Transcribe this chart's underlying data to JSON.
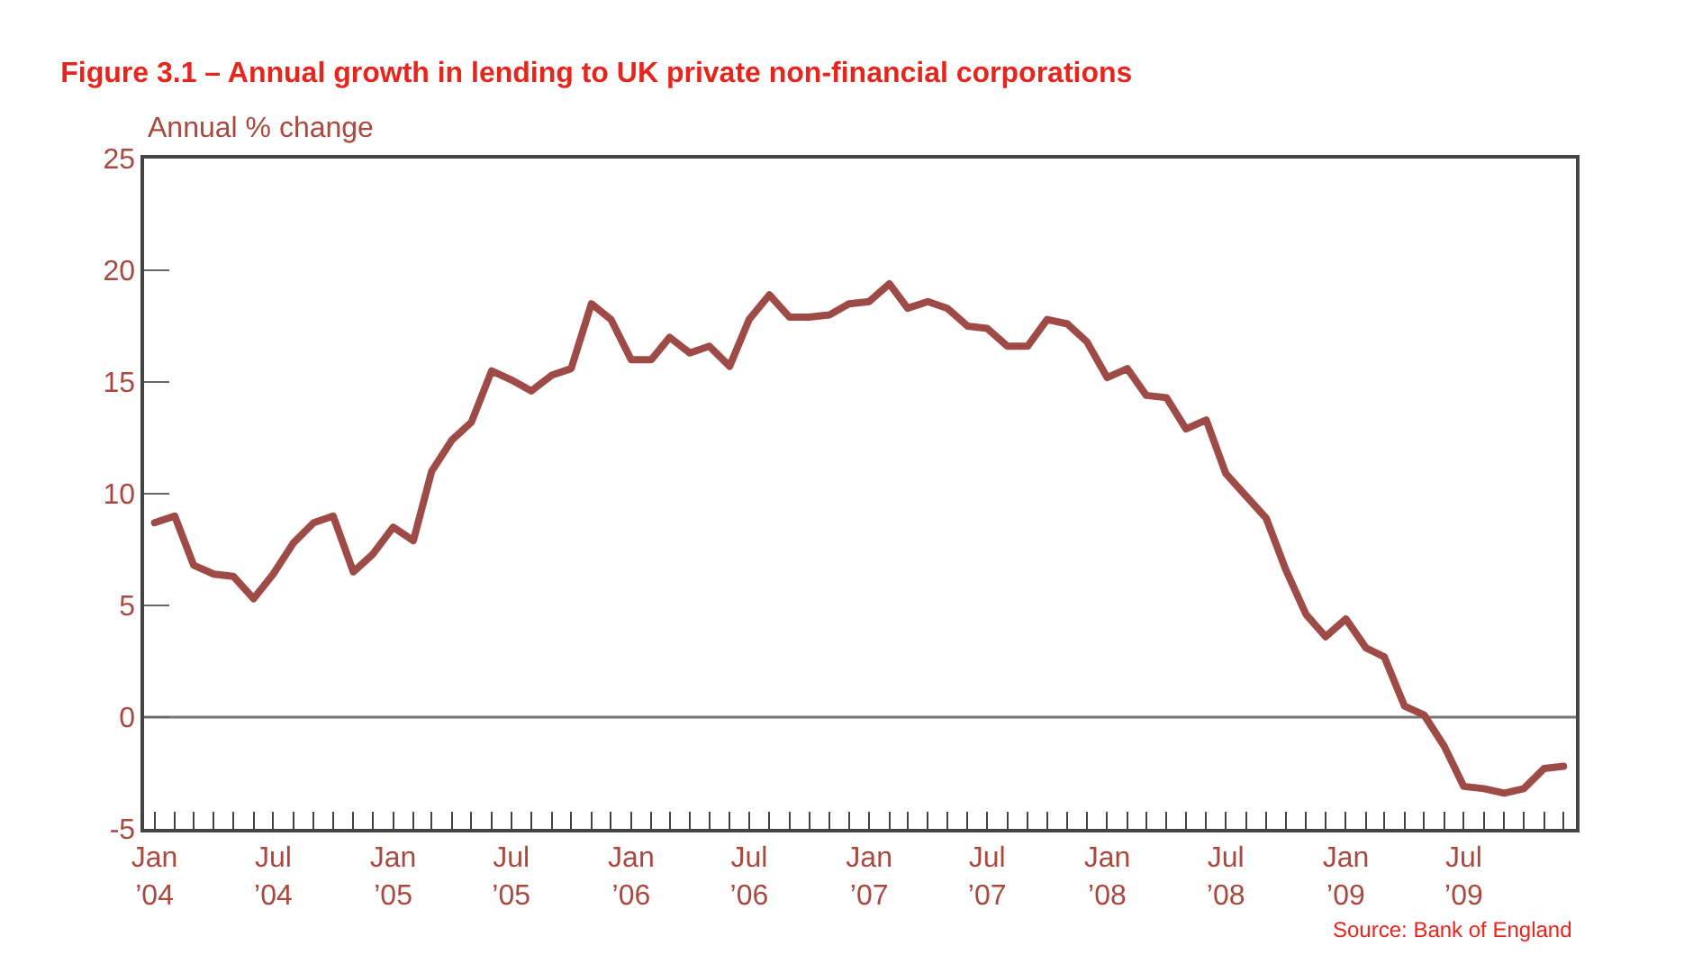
{
  "chart_data": {
    "type": "line",
    "title": "Figure 3.1 – Annual growth in lending to UK private non-financial corporations",
    "ylabel": "Annual % change",
    "x": [
      "2004-01",
      "2004-02",
      "2004-03",
      "2004-04",
      "2004-05",
      "2004-06",
      "2004-07",
      "2004-08",
      "2004-09",
      "2004-10",
      "2004-11",
      "2004-12",
      "2005-01",
      "2005-02",
      "2005-03",
      "2005-04",
      "2005-05",
      "2005-06",
      "2005-07",
      "2005-08",
      "2005-09",
      "2005-10",
      "2005-11",
      "2005-12",
      "2006-01",
      "2006-02",
      "2006-03",
      "2006-04",
      "2006-05",
      "2006-06",
      "2006-07",
      "2006-08",
      "2006-09",
      "2006-10",
      "2006-11",
      "2006-12",
      "2007-01",
      "2007-02",
      "2007-03",
      "2007-04",
      "2007-05",
      "2007-06",
      "2007-07",
      "2007-08",
      "2007-09",
      "2007-10",
      "2007-11",
      "2007-12",
      "2008-01",
      "2008-02",
      "2008-03",
      "2008-04",
      "2008-05",
      "2008-06",
      "2008-07",
      "2008-08",
      "2008-09",
      "2008-10",
      "2008-11",
      "2008-12",
      "2009-01",
      "2009-02",
      "2009-03",
      "2009-04",
      "2009-05",
      "2009-06",
      "2009-07",
      "2009-08",
      "2009-09",
      "2009-10",
      "2009-11",
      "2009-12"
    ],
    "series": [
      {
        "color": "#9e4a47",
        "values": [
          8.7,
          9.0,
          6.8,
          6.4,
          6.3,
          5.3,
          6.4,
          7.8,
          8.7,
          9.0,
          6.5,
          7.3,
          8.5,
          7.9,
          11.0,
          12.4,
          13.2,
          15.5,
          15.1,
          14.6,
          15.3,
          15.6,
          18.5,
          17.8,
          16.0,
          16.0,
          17.0,
          16.3,
          16.6,
          15.7,
          17.8,
          18.9,
          17.9,
          17.9,
          18.0,
          18.5,
          18.6,
          19.4,
          18.3,
          18.6,
          18.3,
          17.5,
          17.4,
          16.6,
          16.6,
          17.8,
          17.6,
          16.8,
          15.2,
          15.6,
          14.4,
          14.3,
          12.9,
          13.3,
          10.9,
          9.9,
          8.9,
          6.6,
          4.6,
          3.6,
          4.4,
          3.1,
          2.7,
          0.5,
          0.1,
          -1.3,
          -3.1,
          -3.2,
          -3.4,
          -3.2,
          -2.3,
          -2.2
        ]
      }
    ],
    "ylim": [
      -5,
      25
    ],
    "yticks": [
      -5,
      0,
      5,
      10,
      15,
      20,
      25
    ],
    "xlim": [
      "2003-12-16",
      "2009-12-20"
    ],
    "xticks": [
      {
        "value": "2004-01",
        "label": "Jan\n’04"
      },
      {
        "value": "2004-02",
        "label": null
      },
      {
        "value": "2004-03",
        "label": null
      },
      {
        "value": "2004-04",
        "label": null
      },
      {
        "value": "2004-05",
        "label": null
      },
      {
        "value": "2004-06",
        "label": null
      },
      {
        "value": "2004-07",
        "label": "Jul\n’04"
      },
      {
        "value": "2004-08",
        "label": null
      },
      {
        "value": "2004-09",
        "label": null
      },
      {
        "value": "2004-10",
        "label": null
      },
      {
        "value": "2004-11",
        "label": null
      },
      {
        "value": "2004-12",
        "label": null
      },
      {
        "value": "2005-01",
        "label": "Jan\n’05"
      },
      {
        "value": "2005-02",
        "label": null
      },
      {
        "value": "2005-03",
        "label": null
      },
      {
        "value": "2005-04",
        "label": null
      },
      {
        "value": "2005-05",
        "label": null
      },
      {
        "value": "2005-06",
        "label": null
      },
      {
        "value": "2005-07",
        "label": "Jul\n’05"
      },
      {
        "value": "2005-08",
        "label": null
      },
      {
        "value": "2005-09",
        "label": null
      },
      {
        "value": "2005-10",
        "label": null
      },
      {
        "value": "2005-11",
        "label": null
      },
      {
        "value": "2005-12",
        "label": null
      },
      {
        "value": "2006-01",
        "label": "Jan\n’06"
      },
      {
        "value": "2006-02",
        "label": null
      },
      {
        "value": "2006-03",
        "label": null
      },
      {
        "value": "2006-04",
        "label": null
      },
      {
        "value": "2006-05",
        "label": null
      },
      {
        "value": "2006-06",
        "label": null
      },
      {
        "value": "2006-07",
        "label": "Jul\n’06"
      },
      {
        "value": "2006-08",
        "label": null
      },
      {
        "value": "2006-09",
        "label": null
      },
      {
        "value": "2006-10",
        "label": null
      },
      {
        "value": "2006-11",
        "label": null
      },
      {
        "value": "2006-12",
        "label": null
      },
      {
        "value": "2007-01",
        "label": "Jan\n’07"
      },
      {
        "value": "2007-02",
        "label": null
      },
      {
        "value": "2007-03",
        "label": null
      },
      {
        "value": "2007-04",
        "label": null
      },
      {
        "value": "2007-05",
        "label": null
      },
      {
        "value": "2007-06",
        "label": null
      },
      {
        "value": "2007-07",
        "label": "Jul\n’07"
      },
      {
        "value": "2007-08",
        "label": null
      },
      {
        "value": "2007-09",
        "label": null
      },
      {
        "value": "2007-10",
        "label": null
      },
      {
        "value": "2007-11",
        "label": null
      },
      {
        "value": "2007-12",
        "label": null
      },
      {
        "value": "2008-01",
        "label": "Jan\n’08"
      },
      {
        "value": "2008-02",
        "label": null
      },
      {
        "value": "2008-03",
        "label": null
      },
      {
        "value": "2008-04",
        "label": null
      },
      {
        "value": "2008-05",
        "label": null
      },
      {
        "value": "2008-06",
        "label": null
      },
      {
        "value": "2008-07",
        "label": "Jul\n’08"
      },
      {
        "value": "2008-08",
        "label": null
      },
      {
        "value": "2008-09",
        "label": null
      },
      {
        "value": "2008-10",
        "label": null
      },
      {
        "value": "2008-11",
        "label": null
      },
      {
        "value": "2008-12",
        "label": null
      },
      {
        "value": "2009-01",
        "label": "Jan\n’09"
      },
      {
        "value": "2009-02",
        "label": null
      },
      {
        "value": "2009-03",
        "label": null
      },
      {
        "value": "2009-04",
        "label": null
      },
      {
        "value": "2009-05",
        "label": null
      },
      {
        "value": "2009-06",
        "label": null
      },
      {
        "value": "2009-07",
        "label": "Jul\n’09"
      },
      {
        "value": "2009-08",
        "label": null
      },
      {
        "value": "2009-09",
        "label": null
      },
      {
        "value": "2009-10",
        "label": null
      },
      {
        "value": "2009-11",
        "label": null
      },
      {
        "value": "2009-12",
        "label": null
      }
    ],
    "ref_lines": [
      {
        "axis": "y",
        "value": 0,
        "color": "#777777"
      }
    ],
    "annotations": [
      "Source: Bank of England"
    ],
    "grid": false,
    "marker": "none",
    "line_style": "solid"
  }
}
